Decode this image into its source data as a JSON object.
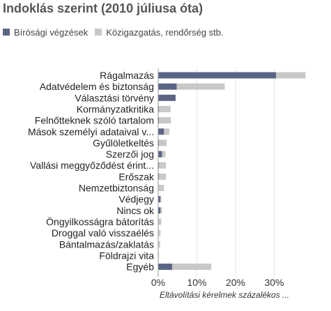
{
  "chart_data": {
    "type": "bar",
    "orientation": "horizontal",
    "stacked": true,
    "title": "Indoklás szerint (2010 júliusa óta)",
    "xlabel": "Eltávolítási kérelmek százalékos ...",
    "xlim": [
      0,
      40
    ],
    "xticks": [
      "0%",
      "10%",
      "20%",
      "30%"
    ],
    "xtick_values": [
      0,
      10,
      20,
      30
    ],
    "grid": true,
    "legend_position": "top-left",
    "categories": [
      "Rágalmazás",
      "Adatvédelem és biztonság",
      "Választási törvény",
      "Kormányzatkritika",
      "Felnőtteknek szóló tartalom",
      "Mások személyi adataival v...",
      "Gyűlöletkeltés",
      "Szerzői jog",
      "Vallási meggyőződést érint...",
      "Erőszak",
      "Nemzetbiztonság",
      "Védjegy",
      "Nincs ok",
      "Öngyilkosságra bátorítás",
      "Droggal való visszaélés",
      "Bántalmazás/zaklatás",
      "Földrajzi vita",
      "Egyéb"
    ],
    "series": [
      {
        "name": "Bírósági végzések",
        "color": "#5a6586",
        "values": [
          30.5,
          4.8,
          4.5,
          0.2,
          0.2,
          1.5,
          0.2,
          1.0,
          0.2,
          0.2,
          0.1,
          0.6,
          0.6,
          0.1,
          0.1,
          0.1,
          0,
          3.6
        ]
      },
      {
        "name": "Közigazgatás, rendőrség stb.",
        "color": "#c8c8c8",
        "values": [
          7.6,
          12.4,
          0,
          3.0,
          3.1,
          1.4,
          2.0,
          0.9,
          1.8,
          1.8,
          1.4,
          0.2,
          0.4,
          0.7,
          0.5,
          0.4,
          0.2,
          10.1
        ]
      }
    ]
  }
}
